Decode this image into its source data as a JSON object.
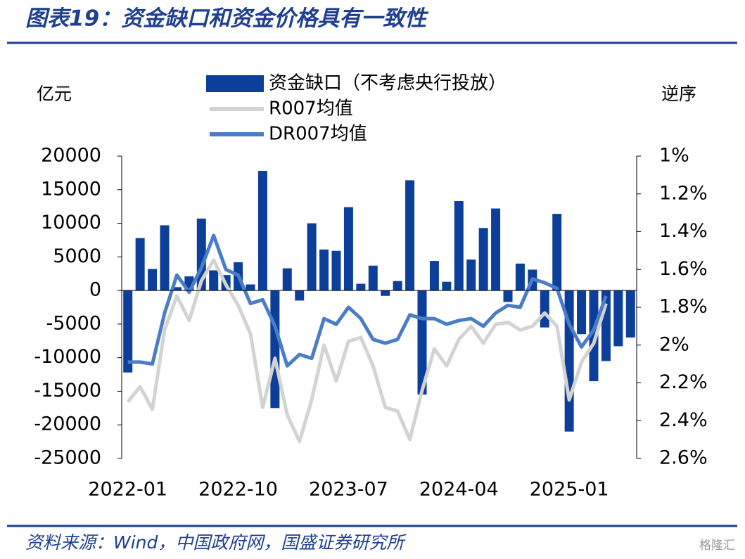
{
  "chart_data": {
    "type": "bar_line",
    "title": "图表19：资金缺口和资金价格具有一致性",
    "y_label": "亿元",
    "y2_label": "逆序",
    "source": "资料来源：Wind，中国政府网，国盛证券研究所",
    "watermark": "格隆汇",
    "categories": [
      "2022-01",
      null,
      null,
      null,
      null,
      null,
      null,
      null,
      null,
      "2022-10",
      null,
      null,
      null,
      null,
      null,
      null,
      null,
      null,
      "2023-07",
      null,
      null,
      null,
      null,
      null,
      null,
      null,
      null,
      "2024-04",
      null,
      null,
      null,
      null,
      null,
      null,
      null,
      null,
      "2025-01",
      null,
      null,
      null,
      null,
      null
    ],
    "series": [
      {
        "name": "资金缺口（不考虑央行投放）",
        "type": "bar",
        "color": "#0b3f9a",
        "axis": "y",
        "values": [
          -12200,
          7800,
          3200,
          9700,
          500,
          2100,
          10700,
          3000,
          2300,
          4200,
          900,
          17800,
          -17500,
          3300,
          -1500,
          10000,
          6100,
          5900,
          12400,
          1000,
          3700,
          -800,
          1400,
          16400,
          -15500,
          4400,
          1300,
          13300,
          4600,
          9300,
          12200,
          -1700,
          4000,
          3100,
          -5500,
          11400,
          -21000,
          -6500,
          -13500,
          -10500,
          -8300,
          -7000
        ]
      },
      {
        "name": "R007均值",
        "type": "line",
        "color": "#d3d3d3",
        "axis": "y2",
        "values": [
          2.3,
          2.22,
          2.34,
          1.92,
          1.74,
          1.87,
          1.66,
          1.55,
          1.68,
          1.79,
          1.94,
          2.33,
          2.07,
          2.37,
          2.51,
          2.29,
          2.0,
          2.19,
          1.98,
          1.96,
          2.11,
          2.33,
          2.35,
          2.5,
          2.24,
          2.02,
          2.11,
          1.97,
          1.9,
          1.99,
          1.89,
          1.88,
          1.92,
          1.9,
          1.83,
          1.9,
          2.29,
          2.09,
          1.99,
          1.78,
          null,
          null
        ]
      },
      {
        "name": "DR007均值",
        "type": "line",
        "color": "#4a7cc7",
        "axis": "y2",
        "values": [
          2.09,
          2.09,
          2.1,
          1.83,
          1.63,
          1.72,
          1.59,
          1.42,
          1.6,
          1.63,
          1.78,
          1.76,
          1.9,
          2.11,
          2.05,
          2.07,
          1.86,
          1.89,
          1.8,
          1.86,
          1.97,
          1.99,
          1.97,
          1.84,
          1.86,
          1.86,
          1.89,
          1.87,
          1.86,
          1.9,
          1.83,
          1.79,
          1.8,
          1.65,
          1.67,
          1.7,
          1.89,
          2.01,
          1.92,
          1.74,
          null,
          null
        ]
      }
    ],
    "ylim": [
      -25000,
      20000
    ],
    "yticks": [
      20000,
      15000,
      10000,
      5000,
      0,
      -5000,
      -10000,
      -15000,
      -20000,
      -25000
    ],
    "y2lim": [
      1,
      2.6
    ],
    "y2_reversed": true,
    "y2ticks": [
      {
        "value": 1,
        "label": "1%"
      },
      {
        "value": 1.2,
        "label": "1.2%"
      },
      {
        "value": 1.4,
        "label": "1.4%"
      },
      {
        "value": 1.6,
        "label": "1.6%"
      },
      {
        "value": 1.8,
        "label": "1.8%"
      },
      {
        "value": 2,
        "label": "2%"
      },
      {
        "value": 2.2,
        "label": "2.2%"
      },
      {
        "value": 2.4,
        "label": "2.4%"
      },
      {
        "value": 2.6,
        "label": "2.6%"
      }
    ],
    "legend": "top"
  }
}
